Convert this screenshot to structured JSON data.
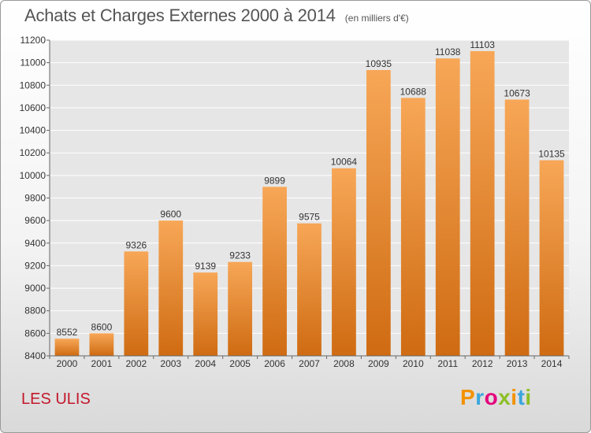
{
  "title": "Achats et Charges Externes 2000 à 2014",
  "unit": "(en milliers d'€)",
  "location": "LES ULIS",
  "logo": {
    "letters": [
      "P",
      "r",
      "o",
      "x",
      "i",
      "t",
      "i"
    ],
    "colors": [
      "#f39200",
      "#3aa6dd",
      "#e4007c",
      "#8cbf26",
      "#f39200",
      "#3aa6dd",
      "#8cbf26"
    ]
  },
  "chart_data": {
    "type": "bar",
    "categories": [
      "2000",
      "2001",
      "2002",
      "2003",
      "2004",
      "2005",
      "2006",
      "2007",
      "2008",
      "2009",
      "2010",
      "2011",
      "2012",
      "2013",
      "2014"
    ],
    "values": [
      8552,
      8600,
      9326,
      9600,
      9139,
      9233,
      9899,
      9575,
      10064,
      10935,
      10688,
      11038,
      11103,
      10673,
      10135
    ],
    "title": "Achats et Charges Externes 2000 à 2014",
    "ylim": [
      8400,
      11200
    ],
    "yticks": [
      8400,
      8600,
      8800,
      9000,
      9200,
      9400,
      9600,
      9800,
      10000,
      10200,
      10400,
      10600,
      10800,
      11000,
      11200
    ],
    "grid": true,
    "colors": {
      "bar_top": "#f7a757",
      "bar_bottom": "#cf6b12",
      "grid": "#ffffff",
      "plot_bg": "#e6e6e6"
    }
  }
}
